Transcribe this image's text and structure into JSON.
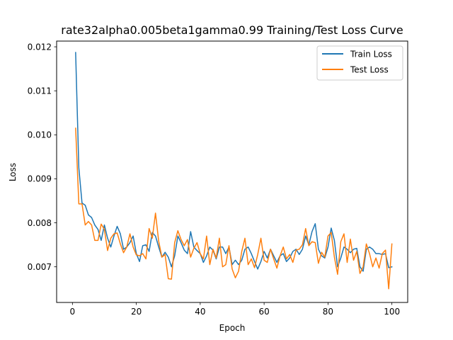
{
  "chart_data": {
    "type": "line",
    "title": "rate32alpha0.005beta1gamma0.99 Training/Test Loss Curve",
    "xlabel": "Epoch",
    "ylabel": "Loss",
    "xlim": [
      -4.95,
      104.95
    ],
    "ylim": [
      0.00619,
      0.01213
    ],
    "xticks": [
      0,
      20,
      40,
      60,
      80,
      100
    ],
    "xtick_labels": [
      "0",
      "20",
      "40",
      "60",
      "80",
      "100"
    ],
    "yticks": [
      0.007,
      0.008,
      0.009,
      0.01,
      0.011,
      0.012
    ],
    "ytick_labels": [
      "0.007",
      "0.008",
      "0.009",
      "0.010",
      "0.011",
      "0.012"
    ],
    "grid": false,
    "legend_position": "top-right",
    "x": [
      1,
      2,
      3,
      4,
      5,
      6,
      7,
      8,
      9,
      10,
      11,
      12,
      13,
      14,
      15,
      16,
      17,
      18,
      19,
      20,
      21,
      22,
      23,
      24,
      25,
      26,
      27,
      28,
      29,
      30,
      31,
      32,
      33,
      34,
      35,
      36,
      37,
      38,
      39,
      40,
      41,
      42,
      43,
      44,
      45,
      46,
      47,
      48,
      49,
      50,
      51,
      52,
      53,
      54,
      55,
      56,
      57,
      58,
      59,
      60,
      61,
      62,
      63,
      64,
      65,
      66,
      67,
      68,
      69,
      70,
      71,
      72,
      73,
      74,
      75,
      76,
      77,
      78,
      79,
      80,
      81,
      82,
      83,
      84,
      85,
      86,
      87,
      88,
      89,
      90,
      91,
      92,
      93,
      94,
      95,
      96,
      97,
      98,
      99,
      100
    ],
    "series": [
      {
        "name": "Train Loss",
        "color": "#1f77b4",
        "values": [
          0.01187,
          0.00925,
          0.00845,
          0.0084,
          0.00818,
          0.00812,
          0.00795,
          0.00785,
          0.0076,
          0.00795,
          0.00765,
          0.00745,
          0.0077,
          0.00792,
          0.00775,
          0.0074,
          0.00745,
          0.00755,
          0.0077,
          0.0073,
          0.00712,
          0.00748,
          0.0075,
          0.00735,
          0.00778,
          0.0077,
          0.00745,
          0.00722,
          0.00733,
          0.00722,
          0.007,
          0.00725,
          0.0077,
          0.00755,
          0.00738,
          0.0073,
          0.0078,
          0.00745,
          0.00737,
          0.0073,
          0.0071,
          0.00725,
          0.00745,
          0.00738,
          0.00718,
          0.00745,
          0.00745,
          0.0073,
          0.00745,
          0.00705,
          0.00715,
          0.00705,
          0.00715,
          0.0074,
          0.00745,
          0.0073,
          0.00712,
          0.00695,
          0.00712,
          0.00735,
          0.0072,
          0.0074,
          0.00725,
          0.0071,
          0.00725,
          0.0073,
          0.00712,
          0.0072,
          0.00735,
          0.0074,
          0.00728,
          0.0074,
          0.0077,
          0.0075,
          0.0078,
          0.00798,
          0.0074,
          0.00725,
          0.0072,
          0.00745,
          0.00788,
          0.0076,
          0.007,
          0.0072,
          0.00745,
          0.0074,
          0.00732,
          0.0074,
          0.00742,
          0.007,
          0.0069,
          0.0074,
          0.00745,
          0.0074,
          0.0073,
          0.0073,
          0.00728,
          0.0073,
          0.00698,
          0.007
        ]
      },
      {
        "name": "Test Loss",
        "color": "#ff7f0e",
        "values": [
          0.01015,
          0.00843,
          0.00843,
          0.00795,
          0.00803,
          0.00795,
          0.0076,
          0.0076,
          0.00797,
          0.00785,
          0.00737,
          0.00765,
          0.00775,
          0.00777,
          0.00752,
          0.00732,
          0.00745,
          0.00775,
          0.00745,
          0.00727,
          0.00725,
          0.0073,
          0.00718,
          0.00787,
          0.00765,
          0.00822,
          0.00758,
          0.00722,
          0.00728,
          0.00673,
          0.00672,
          0.00755,
          0.00782,
          0.00762,
          0.00748,
          0.00762,
          0.00722,
          0.00742,
          0.00755,
          0.0073,
          0.00718,
          0.0077,
          0.00705,
          0.0074,
          0.0072,
          0.00765,
          0.007,
          0.00705,
          0.00748,
          0.00695,
          0.00675,
          0.0069,
          0.00735,
          0.00765,
          0.00705,
          0.00718,
          0.00698,
          0.00728,
          0.00765,
          0.00715,
          0.0071,
          0.0074,
          0.00718,
          0.00697,
          0.00725,
          0.00745,
          0.00718,
          0.00728,
          0.0071,
          0.00738,
          0.0074,
          0.0075,
          0.00787,
          0.00748,
          0.00757,
          0.00755,
          0.00708,
          0.00733,
          0.00722,
          0.0077,
          0.00778,
          0.00722,
          0.00683,
          0.00757,
          0.00775,
          0.0071,
          0.00763,
          0.00715,
          0.00735,
          0.00685,
          0.007,
          0.00752,
          0.0073,
          0.007,
          0.0072,
          0.00697,
          0.0073,
          0.00738,
          0.0065,
          0.00752
        ]
      }
    ]
  }
}
